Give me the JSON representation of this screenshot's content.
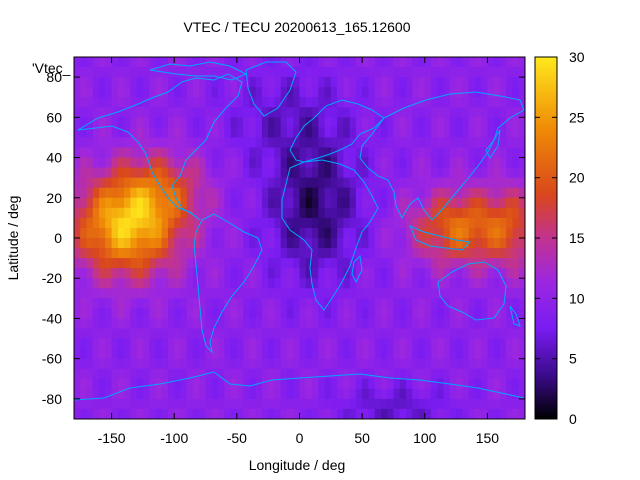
{
  "chart_data": {
    "type": "heatmap",
    "title": "VTEC / TECU 20200613_165.12600",
    "xlabel": "Longitude / deg",
    "ylabel": "Latitude / deg",
    "key_label": "'Vtec_",
    "xlim": [
      -180,
      180
    ],
    "ylim": [
      -90,
      90
    ],
    "x_ticks": [
      -150,
      -100,
      -50,
      0,
      50,
      100,
      150
    ],
    "y_ticks": [
      -80,
      -60,
      -40,
      -20,
      0,
      20,
      40,
      60,
      80
    ],
    "colorbar": {
      "range": [
        0,
        30
      ],
      "ticks": [
        0,
        5,
        10,
        15,
        20,
        25,
        30
      ],
      "palette": [
        "#000000",
        "#3a0b8a",
        "#7a1cf2",
        "#9d27e0",
        "#c2338f",
        "#d9471c",
        "#ef8a06",
        "#ffe81c"
      ]
    },
    "grid": false,
    "coastline_color": "#00a8ff",
    "field_peaks": [
      {
        "lon": -135,
        "lat": 5,
        "vtec": 28
      },
      {
        "lon": 130,
        "lat": 5,
        "vtec": 22
      },
      {
        "lon": 15,
        "lat": 15,
        "vtec": 3
      }
    ]
  }
}
